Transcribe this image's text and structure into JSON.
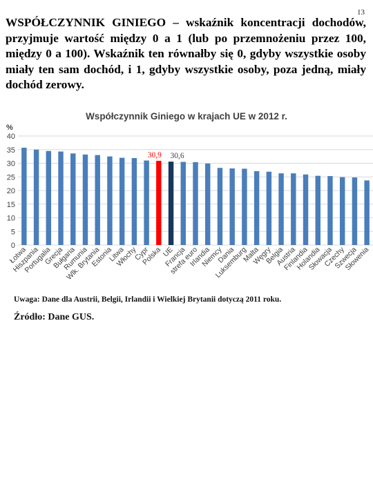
{
  "page": {
    "number": "13",
    "intro_lead": "WSPÓŁCZYNNIK GINIEGO",
    "intro_rest": " – wskaźnik koncentracji dochodów, przyjmuje wartość między 0 a 1 (lub po przemnożeniu przez 100, między 0 a 100). Wskaźnik ten równałby się 0, gdyby wszystkie osoby miały ten sam dochód, i 1, gdyby wszystkie osoby, poza jedną, miały dochód zerowy.",
    "note": "Uwaga: Dane dla Austrii, Belgii, Irlandii i Wielkiej Brytanii dotyczą  2011 roku.",
    "source": "Źródło: Dane GUS."
  },
  "chart_data": {
    "type": "bar",
    "title": "Współczynnik Giniego w krajach UE w 2012 r.",
    "ylabel": "%",
    "ylim": [
      0,
      40
    ],
    "yticks": [
      0,
      5,
      10,
      15,
      20,
      25,
      30,
      35,
      40
    ],
    "grid": true,
    "categories": [
      "Łotwa",
      "Hiszpania",
      "Portugalia",
      "Grecja",
      "Bułgaria",
      "Rumunia",
      "Wlk. Brytania",
      "Estonia",
      "Litwa",
      "Włochy",
      "Cypr",
      "Polska",
      "UE",
      "Francja",
      "strefa euro",
      "Irlandia",
      "Niemcy",
      "Dania",
      "Luksemburg",
      "Malta",
      "Węgry",
      "Belgia",
      "Austria",
      "Finlandia",
      "Holandia",
      "Słowacja",
      "Czechy",
      "Szwecja",
      "Słowenia"
    ],
    "values": [
      35.7,
      35.0,
      34.5,
      34.3,
      33.6,
      33.2,
      33.0,
      32.5,
      32.0,
      31.9,
      31.0,
      30.9,
      30.6,
      30.5,
      30.4,
      29.9,
      28.3,
      28.1,
      28.0,
      27.1,
      26.9,
      26.3,
      26.3,
      25.9,
      25.4,
      25.3,
      24.9,
      24.8,
      23.7
    ],
    "data_labels": {
      "Polska": "30,9",
      "UE": "30,6"
    },
    "colors": {
      "default": "#4a7ebb",
      "Polska": "#ff0000",
      "UE": "#17375e",
      "grid": "#d9d9d9",
      "label_polska": "#ff0000",
      "label_ue": "#404040"
    }
  }
}
